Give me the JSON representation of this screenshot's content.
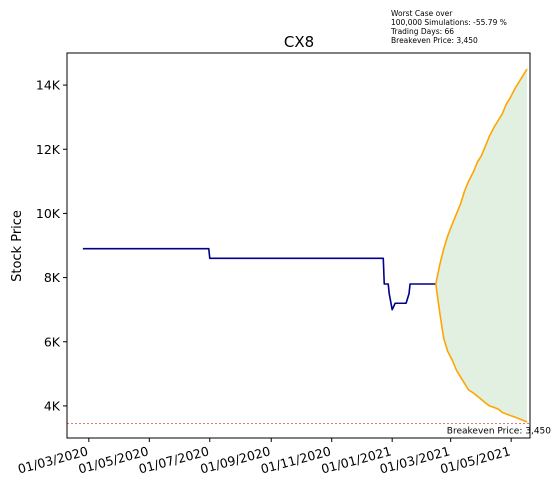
{
  "chart_data": {
    "type": "line",
    "title": "CX8",
    "ylabel": "Stock Price",
    "xlabel": "",
    "ylim": [
      3000,
      15000
    ],
    "xlim": [
      "2020-02-08",
      "2021-05-20"
    ],
    "yticks": [
      4000,
      6000,
      8000,
      10000,
      12000,
      14000
    ],
    "ytick_labels": [
      "4K",
      "6K",
      "8K",
      "10K",
      "12K",
      "14K"
    ],
    "xticks": [
      "2020-03-01",
      "2020-05-01",
      "2020-07-01",
      "2020-09-01",
      "2020-11-01",
      "2021-01-01",
      "2021-03-01",
      "2021-05-01"
    ],
    "xtick_labels": [
      "01/03/2020",
      "01/05/2020",
      "01/07/2020",
      "01/09/2020",
      "01/11/2020",
      "01/01/2021",
      "01/03/2021",
      "01/05/2021"
    ],
    "annotation_lines": [
      "Worst Case over",
      "100,000 Simulations: -55.79 %",
      "Trading Days: 66",
      "Breakeven Price: 3,450"
    ],
    "breakeven": {
      "value": 3450,
      "label": "Breakeven Price: 3,450"
    },
    "colors": {
      "history": "#00008b",
      "projection": "#ffa500",
      "band": "#cfe6cf",
      "breakeven": "#d62728"
    },
    "history": {
      "name": "",
      "x": [
        "2020-02-24",
        "2020-06-30",
        "2020-07-01",
        "2020-12-23",
        "2020-12-24",
        "2020-12-28",
        "2020-12-29",
        "2021-01-01",
        "2021-01-04",
        "2021-01-15",
        "2021-01-18",
        "2021-01-19",
        "2021-02-14"
      ],
      "y": [
        8900,
        8900,
        8600,
        8600,
        7800,
        7800,
        7500,
        7000,
        7200,
        7200,
        7500,
        7800,
        7800
      ]
    },
    "projection_upper": {
      "x": [
        "2021-02-14",
        "2021-02-18",
        "2021-02-22",
        "2021-02-26",
        "2021-03-03",
        "2021-03-07",
        "2021-03-11",
        "2021-03-15",
        "2021-03-19",
        "2021-03-24",
        "2021-03-28",
        "2021-04-01",
        "2021-04-05",
        "2021-04-09",
        "2021-04-14",
        "2021-04-18",
        "2021-04-22",
        "2021-04-26",
        "2021-04-30",
        "2021-05-05",
        "2021-05-09",
        "2021-05-13",
        "2021-05-17"
      ],
      "y": [
        7800,
        8400,
        8900,
        9300,
        9700,
        10000,
        10300,
        10700,
        11000,
        11300,
        11600,
        11800,
        12100,
        12400,
        12700,
        12900,
        13100,
        13400,
        13600,
        13900,
        14100,
        14300,
        14500
      ]
    },
    "projection_lower": {
      "x": [
        "2021-02-14",
        "2021-02-18",
        "2021-02-22",
        "2021-02-26",
        "2021-03-03",
        "2021-03-07",
        "2021-03-11",
        "2021-03-15",
        "2021-03-19",
        "2021-03-24",
        "2021-03-28",
        "2021-04-01",
        "2021-04-05",
        "2021-04-09",
        "2021-04-14",
        "2021-04-18",
        "2021-04-22",
        "2021-04-26",
        "2021-04-30",
        "2021-05-05",
        "2021-05-09",
        "2021-05-13",
        "2021-05-17"
      ],
      "y": [
        7800,
        6900,
        6100,
        5700,
        5400,
        5100,
        4900,
        4700,
        4500,
        4400,
        4300,
        4200,
        4100,
        4000,
        3950,
        3900,
        3800,
        3750,
        3700,
        3650,
        3600,
        3550,
        3500
      ]
    },
    "grid": false,
    "legend": "none"
  }
}
